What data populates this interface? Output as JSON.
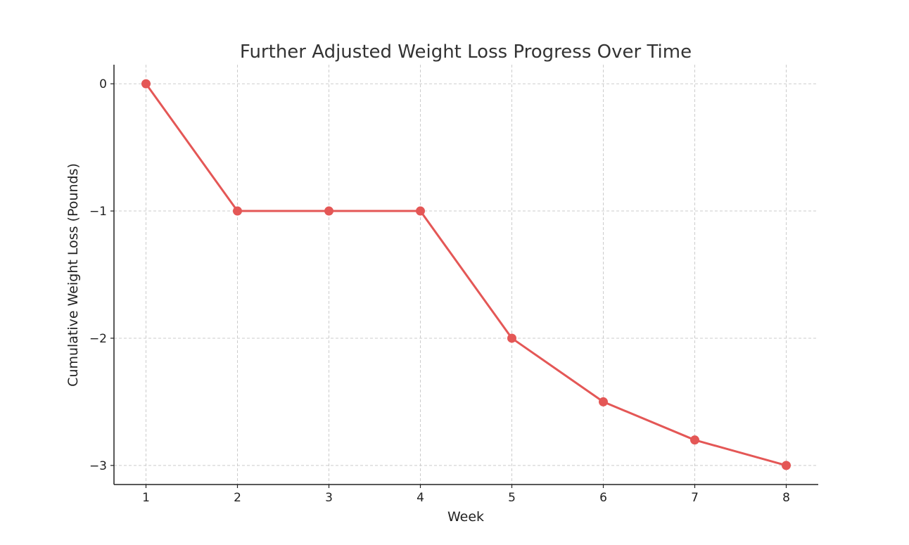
{
  "chart_data": {
    "type": "line",
    "title": "Further Adjusted Weight Loss Progress Over Time",
    "xlabel": "Week",
    "ylabel": "Cumulative Weight Loss (Pounds)",
    "x": [
      1,
      2,
      3,
      4,
      5,
      6,
      7,
      8
    ],
    "series": [
      {
        "values": [
          0,
          -1,
          -1,
          -1,
          -2,
          -2.5,
          -2.8,
          -3
        ],
        "color": "#e45756",
        "marker": "circle"
      }
    ],
    "xticks": [
      1,
      2,
      3,
      4,
      5,
      6,
      7,
      8
    ],
    "xtick_labels": [
      "1",
      "2",
      "3",
      "4",
      "5",
      "6",
      "7",
      "8"
    ],
    "yticks": [
      0,
      -1,
      -2,
      -3
    ],
    "ytick_labels": [
      "0",
      "−1",
      "−2",
      "−3"
    ],
    "xlim": [
      0.65,
      8.35
    ],
    "ylim": [
      -3.15,
      0.15
    ],
    "grid": true,
    "spines": "left-bottom"
  }
}
